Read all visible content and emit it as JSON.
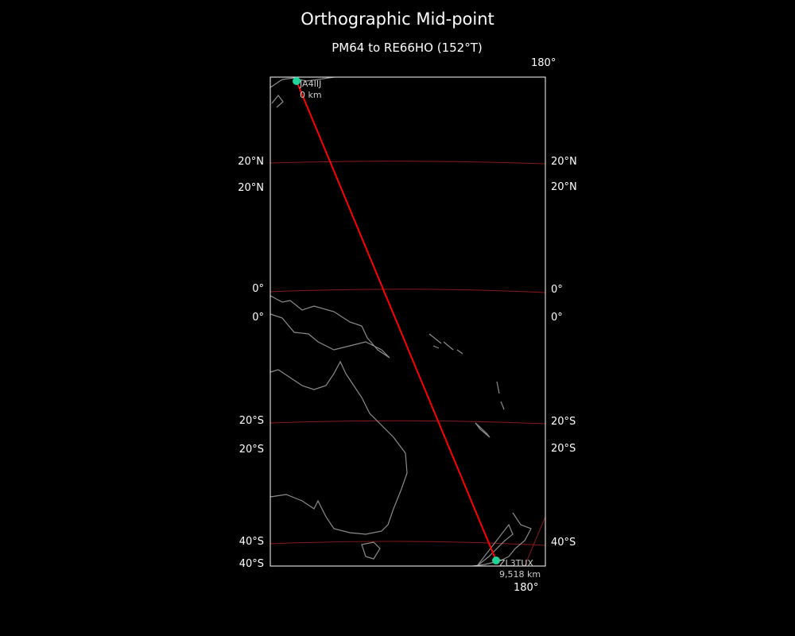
{
  "title": "Orthographic Mid-point",
  "subtitle": "PM64 to RE66HO (152°T)",
  "colors": {
    "background": "#000000",
    "path": "#ff0000",
    "gridlines": "#8b1a1a",
    "coastline": "#8c8c8c",
    "station": "#1fd39a",
    "frame": "#ffffff"
  },
  "lon_labels": {
    "top": "180°",
    "bottom": "180°"
  },
  "lat_labels_left": [
    "20°N",
    "20°N",
    "0°",
    "0°",
    "20°S",
    "20°S",
    "40°S",
    "40°S"
  ],
  "lat_labels_right": [
    "20°N",
    "20°N",
    "0°",
    "0°",
    "20°S",
    "20°S",
    "40°S"
  ],
  "start": {
    "call": "JA4IIJ",
    "distance": "0 km"
  },
  "end": {
    "call": "ZL3TUX",
    "distance": "9,518 km"
  }
}
